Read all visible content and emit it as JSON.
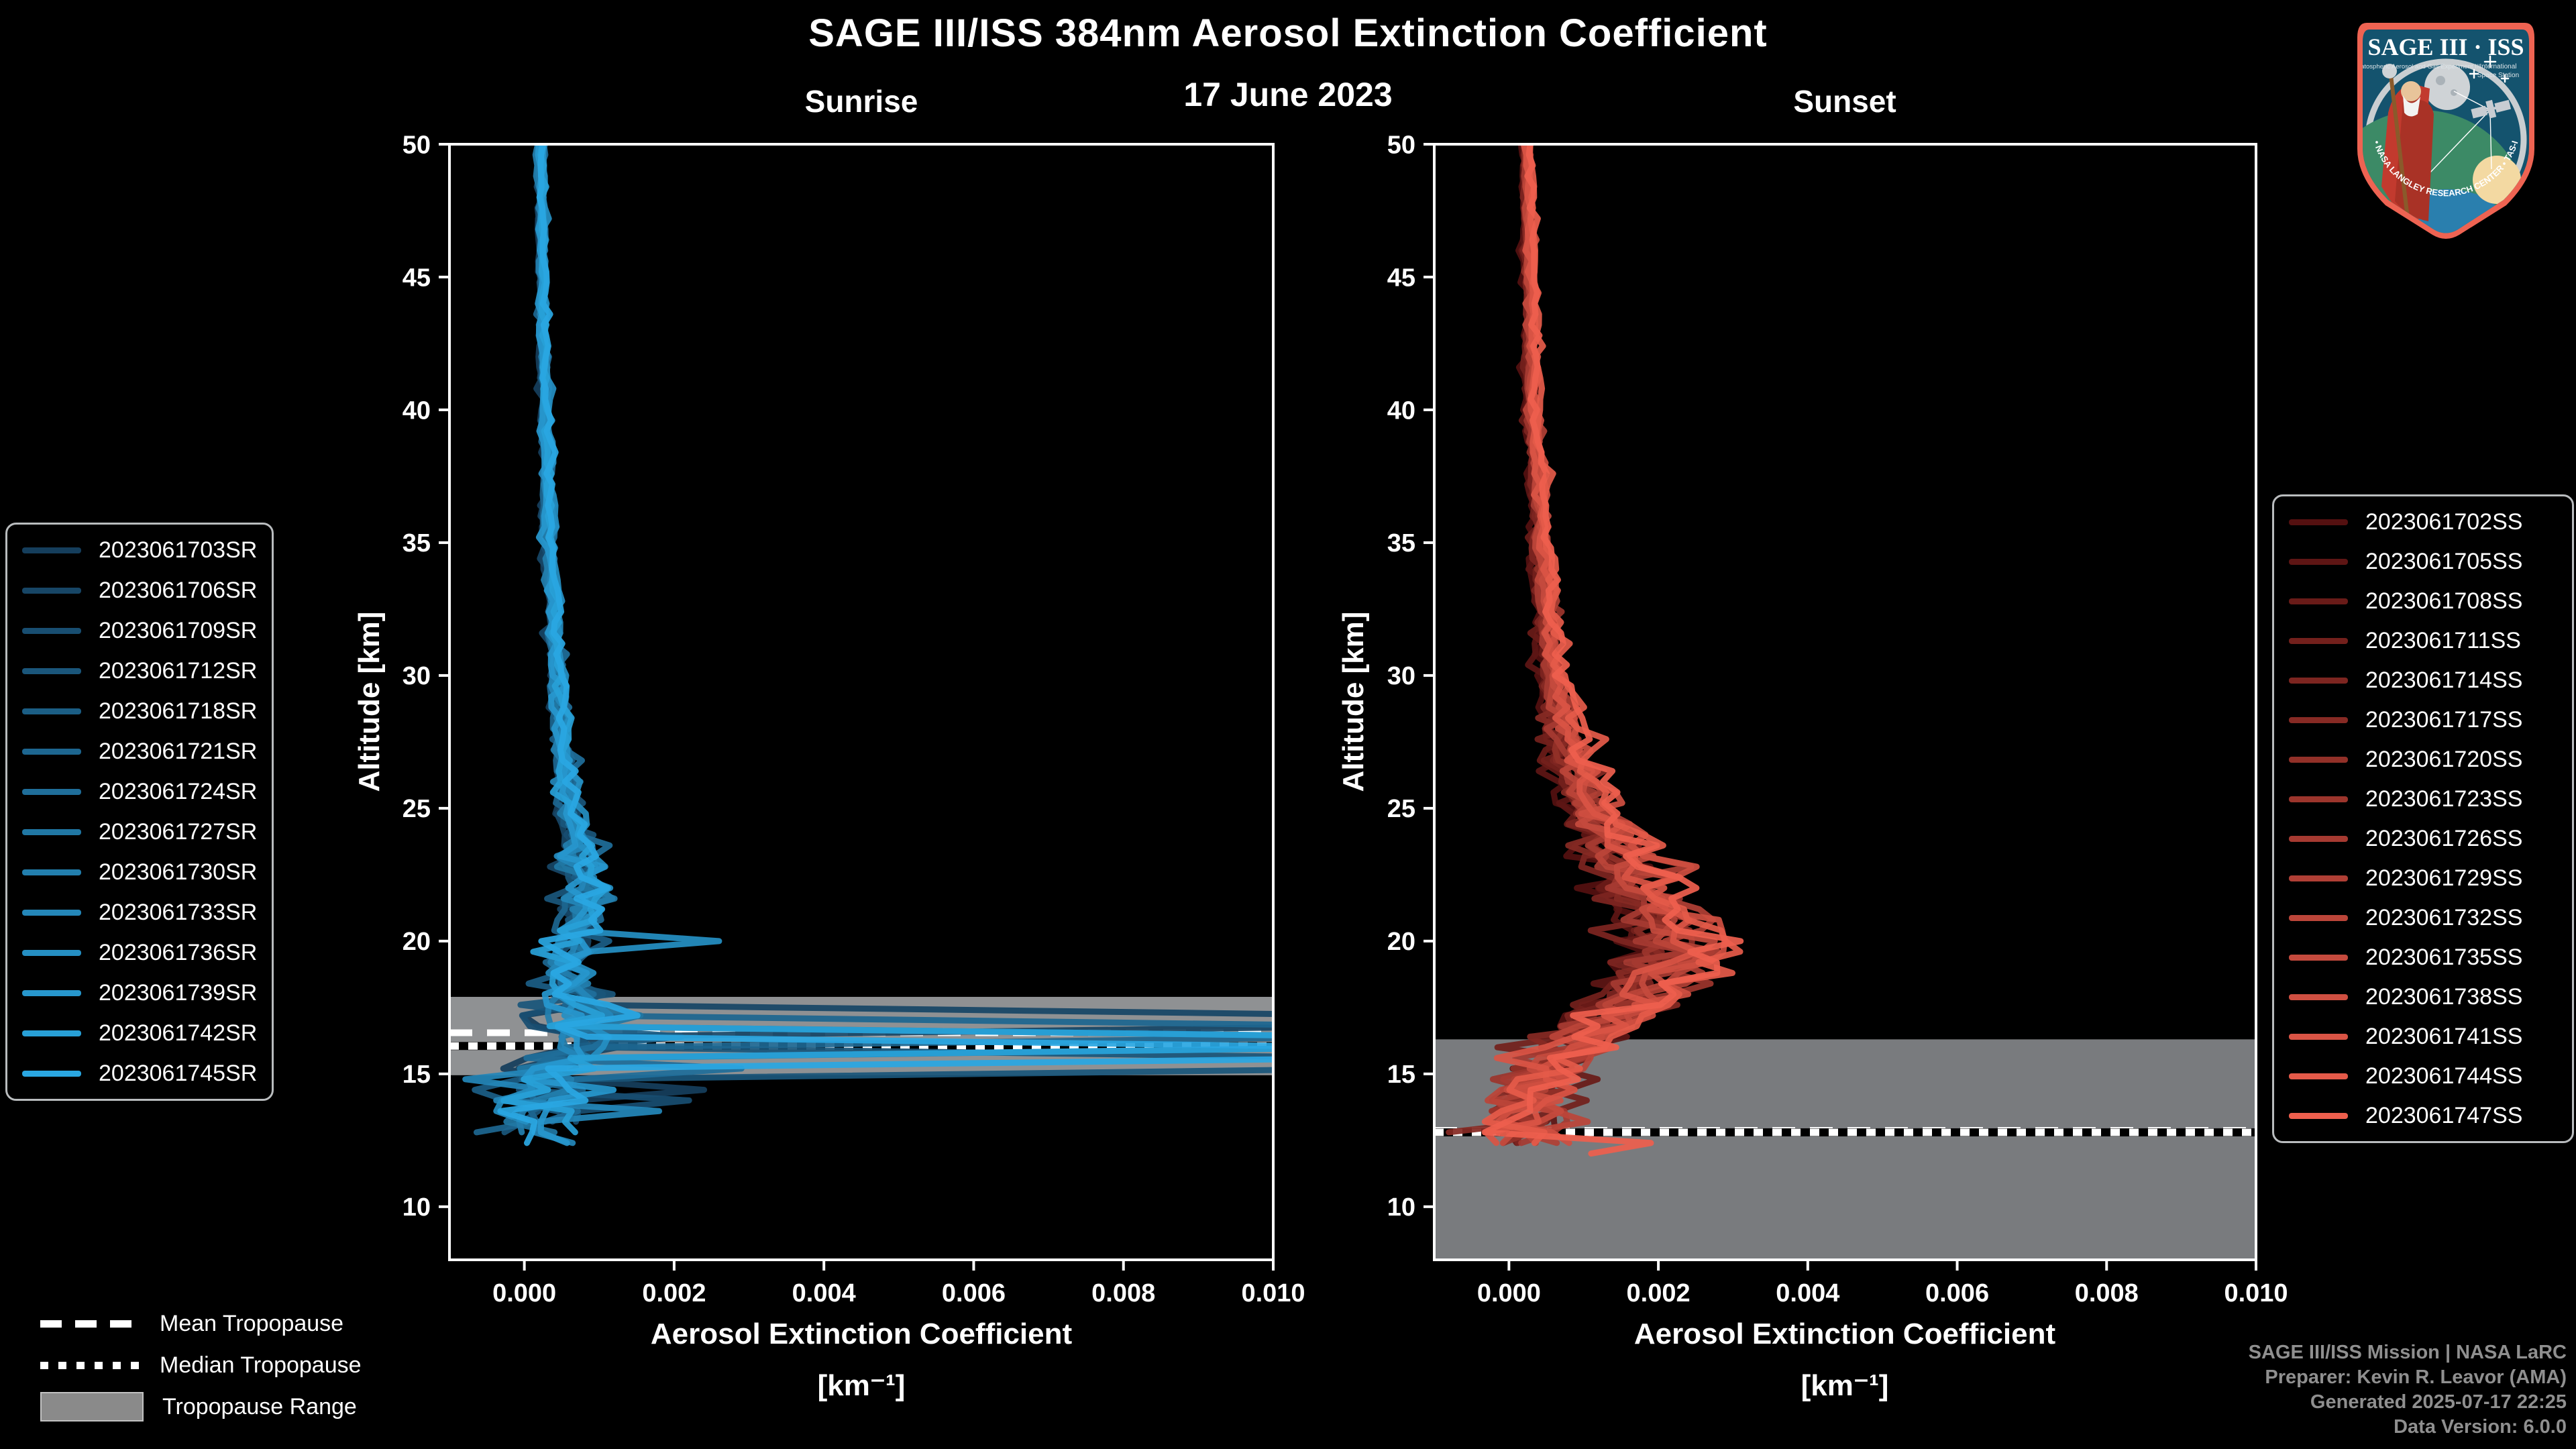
{
  "header": {
    "title": "SAGE III/ISS 384nm Aerosol Extinction Coefficient",
    "date": "17 June 2023"
  },
  "panels": [
    {
      "title": "Sunrise"
    },
    {
      "title": "Sunset"
    }
  ],
  "axes": {
    "x_label_line1": "Aerosol Extinction Coefficient",
    "x_label_line2": "[km⁻¹]",
    "y_label": "Altitude [km]",
    "x_ticks": {
      "values": [
        0.0,
        0.002,
        0.004,
        0.006,
        0.008,
        0.01
      ],
      "labels": [
        "0.000",
        "0.002",
        "0.004",
        "0.006",
        "0.008",
        "0.010"
      ]
    },
    "y_ticks": {
      "values": [
        10,
        15,
        20,
        25,
        30,
        35,
        40,
        45,
        50
      ],
      "labels": [
        "10",
        "15",
        "20",
        "25",
        "30",
        "35",
        "40",
        "45",
        "50"
      ]
    },
    "xlim": [
      -0.001,
      0.01
    ],
    "ylim": [
      8,
      50
    ]
  },
  "chart_data": [
    {
      "type": "line",
      "name": "Sunrise",
      "xlabel": "Aerosol Extinction Coefficient [km⁻¹]",
      "ylabel": "Altitude [km]",
      "xlim": [
        -0.001,
        0.01
      ],
      "ylim": [
        8,
        50
      ],
      "legend_position": "left-outside",
      "grid": false,
      "profile_alt_km": [
        50,
        45,
        40,
        35,
        30,
        27,
        25,
        23.5,
        22,
        21,
        20,
        19,
        18,
        17,
        16,
        15,
        14,
        13,
        11.9
      ],
      "profile_ext_km1": [
        0.00022,
        0.00024,
        0.00028,
        0.00034,
        0.00044,
        0.00052,
        0.0006,
        0.00075,
        0.00085,
        0.00075,
        0.00065,
        0.0006,
        0.00065,
        0.0007,
        0.0006,
        0.00035,
        0.00022,
        0.00012,
        0.0001
      ],
      "noise_alt_km": [
        50,
        40,
        30,
        25,
        22,
        20,
        18,
        16.5,
        15,
        13,
        11.9
      ],
      "noise_amp_km1": [
        3e-05,
        4e-05,
        7e-05,
        0.00013,
        0.00022,
        0.00028,
        0.00035,
        0.0005,
        0.00055,
        0.0006,
        0.0006
      ],
      "tropopause": {
        "range_km": [
          14.95,
          17.9
        ],
        "mean_km": 16.55,
        "median_km": 16.05,
        "range_color": "#8f9193"
      },
      "series": [
        {
          "name": "2023061703SR",
          "color": "#153e5c",
          "scale": 0.85,
          "seed": 11,
          "end_alt": 13.4,
          "cloud_alt": null,
          "spike": [
            0.0024,
            14.45
          ]
        },
        {
          "name": "2023061706SR",
          "color": "#174666",
          "scale": 0.9,
          "seed": 23,
          "end_alt": 12.9,
          "cloud_alt": 17.05,
          "spike": null
        },
        {
          "name": "2023061709SR",
          "color": "#184e71",
          "scale": 1.0,
          "seed": 37,
          "end_alt": 13.1,
          "cloud_alt": null,
          "spike": [
            0.0022,
            14.2
          ]
        },
        {
          "name": "2023061712SR",
          "color": "#1a567b",
          "scale": 0.95,
          "seed": 41,
          "end_alt": 12.6,
          "cloud_alt": 15.6,
          "spike": null
        },
        {
          "name": "2023061718SR",
          "color": "#1b5e85",
          "scale": 1.05,
          "seed": 57,
          "end_alt": 13.3,
          "cloud_alt": null,
          "spike": [
            0.0021,
            16.6
          ]
        },
        {
          "name": "2023061721SR",
          "color": "#1d6690",
          "scale": 0.9,
          "seed": 63,
          "end_alt": 12.8,
          "cloud_alt": 16.85,
          "spike": null
        },
        {
          "name": "2023061724SR",
          "color": "#1f6e9a",
          "scale": 1.1,
          "seed": 71,
          "end_alt": 13.0,
          "cloud_alt": null,
          "spike": [
            0.0029,
            15.25
          ]
        },
        {
          "name": "2023061727SR",
          "color": "#2077a4",
          "scale": 1.0,
          "seed": 83,
          "end_alt": 12.5,
          "cloud_alt": null,
          "spike": null
        },
        {
          "name": "2023061730SR",
          "color": "#227fae",
          "scale": 0.95,
          "seed": 91,
          "end_alt": 12.7,
          "cloud_alt": 16.2,
          "spike": null
        },
        {
          "name": "2023061733SR",
          "color": "#2487b9",
          "scale": 1.05,
          "seed": 101,
          "end_alt": 12.4,
          "cloud_alt": null,
          "spike": [
            0.0018,
            13.6
          ]
        },
        {
          "name": "2023061736SR",
          "color": "#258fc3",
          "scale": 1.15,
          "seed": 113,
          "end_alt": 12.9,
          "cloud_alt": null,
          "spike": [
            0.0026,
            19.9
          ]
        },
        {
          "name": "2023061739SR",
          "color": "#2797cd",
          "scale": 0.9,
          "seed": 127,
          "end_alt": 12.2,
          "cloud_alt": null,
          "spike": null
        },
        {
          "name": "2023061742SR",
          "color": "#28a0d7",
          "scale": 1.05,
          "seed": 131,
          "end_alt": 12.6,
          "cloud_alt": 16.45,
          "spike": null
        },
        {
          "name": "2023061745SR",
          "color": "#2aa7e2",
          "scale": 1.1,
          "seed": 149,
          "end_alt": 12.3,
          "cloud_alt": 16.0,
          "spike": null
        }
      ]
    },
    {
      "type": "line",
      "name": "Sunset",
      "xlabel": "Aerosol Extinction Coefficient [km⁻¹]",
      "ylabel": "Altitude [km]",
      "xlim": [
        -0.001,
        0.01
      ],
      "ylim": [
        8,
        50
      ],
      "legend_position": "right-outside",
      "grid": false,
      "profile_alt_km": [
        50,
        45,
        40,
        35,
        30,
        27,
        25,
        23,
        22,
        21,
        20,
        19,
        18,
        17,
        16,
        15,
        14,
        13,
        11.9
      ],
      "profile_ext_km1": [
        0.00022,
        0.00026,
        0.0003,
        0.0004,
        0.00055,
        0.00075,
        0.00105,
        0.0014,
        0.0016,
        0.0019,
        0.00205,
        0.0019,
        0.00165,
        0.00115,
        0.0008,
        0.00045,
        0.00025,
        0.00015,
        0.0001
      ],
      "noise_alt_km": [
        50,
        40,
        30,
        25,
        22,
        20,
        18,
        16,
        14,
        11.9
      ],
      "noise_amp_km1": [
        3e-05,
        5e-05,
        0.0001,
        0.00025,
        0.0004,
        0.00045,
        0.0004,
        0.00045,
        0.00055,
        0.0005
      ],
      "tropopause": {
        "range_km": [
          8.0,
          16.3
        ],
        "mean_km": 12.87,
        "median_km": 12.8,
        "range_color": "#797b7e"
      },
      "series": [
        {
          "name": "2023061702SS",
          "color": "#541010",
          "scale": 0.8,
          "seed": 211,
          "end_alt": 12.6,
          "cloud_alt": null,
          "spike": null
        },
        {
          "name": "2023061705SS",
          "color": "#5e1514",
          "scale": 0.85,
          "seed": 223,
          "end_alt": 12.5,
          "cloud_alt": null,
          "spike": null
        },
        {
          "name": "2023061708SS",
          "color": "#691b18",
          "scale": 0.9,
          "seed": 227,
          "end_alt": 12.4,
          "cloud_alt": null,
          "spike": null
        },
        {
          "name": "2023061711SS",
          "color": "#73201c",
          "scale": 0.95,
          "seed": 233,
          "end_alt": 12.55,
          "cloud_alt": null,
          "spike": null
        },
        {
          "name": "2023061714SS",
          "color": "#7d2520",
          "scale": 0.9,
          "seed": 241,
          "end_alt": 12.3,
          "cloud_alt": null,
          "spike": null
        },
        {
          "name": "2023061717SS",
          "color": "#872a24",
          "scale": 1.0,
          "seed": 251,
          "end_alt": 12.45,
          "cloud_alt": null,
          "spike": null
        },
        {
          "name": "2023061720SS",
          "color": "#923028",
          "scale": 1.05,
          "seed": 257,
          "end_alt": 12.2,
          "cloud_alt": null,
          "spike": null
        },
        {
          "name": "2023061723SS",
          "color": "#9c352c",
          "scale": 1.1,
          "seed": 263,
          "end_alt": 12.5,
          "cloud_alt": null,
          "spike": [
            0.0027,
            18.3
          ]
        },
        {
          "name": "2023061726SS",
          "color": "#a63a31",
          "scale": 1.0,
          "seed": 271,
          "end_alt": 12.35,
          "cloud_alt": null,
          "spike": null
        },
        {
          "name": "2023061729SS",
          "color": "#b03f35",
          "scale": 1.2,
          "seed": 277,
          "end_alt": 12.3,
          "cloud_alt": null,
          "spike": [
            0.0028,
            19.6
          ]
        },
        {
          "name": "2023061732SS",
          "color": "#bb4539",
          "scale": 1.05,
          "seed": 281,
          "end_alt": 12.25,
          "cloud_alt": null,
          "spike": null
        },
        {
          "name": "2023061735SS",
          "color": "#c54a3d",
          "scale": 1.15,
          "seed": 283,
          "end_alt": 12.4,
          "cloud_alt": null,
          "spike": null
        },
        {
          "name": "2023061738SS",
          "color": "#cf4f41",
          "scale": 1.25,
          "seed": 293,
          "end_alt": 12.15,
          "cloud_alt": null,
          "spike": [
            0.0024,
            17.9
          ]
        },
        {
          "name": "2023061741SS",
          "color": "#d95445",
          "scale": 1.1,
          "seed": 307,
          "end_alt": 12.3,
          "cloud_alt": null,
          "spike": null
        },
        {
          "name": "2023061744SS",
          "color": "#e45a49",
          "scale": 1.35,
          "seed": 311,
          "end_alt": 12.1,
          "cloud_alt": null,
          "spike": [
            0.0029,
            20.2
          ]
        },
        {
          "name": "2023061747SS",
          "color": "#ee5f4d",
          "scale": 1.3,
          "seed": 313,
          "end_alt": 11.95,
          "cloud_alt": null,
          "spike": [
            0.0019,
            12.35
          ]
        }
      ]
    }
  ],
  "tropopause_legend": {
    "items": [
      {
        "label": "Mean Tropopause",
        "swatch": "dashed"
      },
      {
        "label": "Median Tropopause",
        "swatch": "dotted"
      },
      {
        "label": "Tropopause Range",
        "swatch": "band"
      }
    ]
  },
  "footer": {
    "color": "#8f8f8f",
    "lines": [
      "SAGE III/ISS Mission | NASA LaRC",
      "Preparer: Kevin R. Leavor (AMA)",
      "Generated 2025-07-17 22:25",
      "Data Version: 6.0.0"
    ]
  },
  "logo": {
    "title": "SAGE III · ISS",
    "subtitle_left": "Stratospheric Aerosol and Gas Experiment III",
    "subtitle_right_1": "International",
    "subtitle_right_2": "Space Station",
    "arc_text": "BALL • NASA LANGLEY RESEARCH CENTER • TAS-I • ESA",
    "border_color": "#ee6352",
    "bg_color": "#14536e"
  },
  "style_colors": {
    "spine": "#ffffff",
    "tick_label": "#ffffff",
    "mean_line": "#ffffff",
    "median_line_fg": "#ffffff",
    "median_line_bg": "#000000"
  }
}
